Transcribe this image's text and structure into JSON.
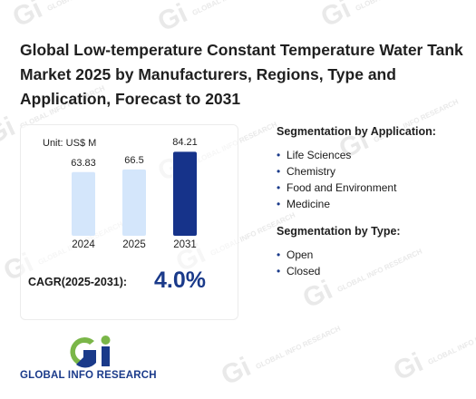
{
  "title": "Global Low-temperature Constant Temperature Water Tank Market 2025 by Manufacturers, Regions, Type and Application, Forecast to 2031",
  "unit": "Unit: US$ M",
  "chart_data": {
    "type": "bar",
    "categories": [
      "2024",
      "2025",
      "2031"
    ],
    "values": [
      63.83,
      66.5,
      84.21
    ],
    "value_labels": [
      "63.83",
      "66.5",
      "84.21"
    ],
    "colors": [
      "#d4e6fb",
      "#d4e6fb",
      "#16338a"
    ],
    "ylim": [
      0,
      100
    ]
  },
  "cagr": {
    "label": "CAGR(2025-2031):",
    "value": "4.0%"
  },
  "application": {
    "title": "Segmentation by Application:",
    "items": [
      "Life Sciences",
      "Chemistry",
      "Food and Environment",
      "Medicine"
    ]
  },
  "type_seg": {
    "title": "Segmentation by Type:",
    "items": [
      "Open",
      "Closed"
    ]
  },
  "logo": {
    "text": "GLOBAL INFO RESEARCH",
    "colors": {
      "blue": "#1a3a8a",
      "green": "#7ab648"
    }
  },
  "watermark": {
    "text": "GLOBAL INFO RESEARCH"
  }
}
